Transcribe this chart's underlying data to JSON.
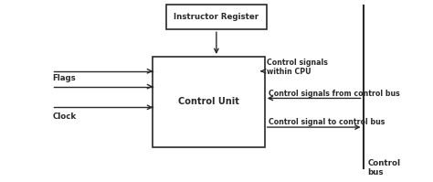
{
  "bg_color": "#ffffff",
  "box_color": "#ffffff",
  "line_color": "#2a2a2a",
  "text_color": "#2a2a2a",
  "control_unit_label": "Control Unit",
  "instructor_register_label": "Instructor Register",
  "flags_label": "Flags",
  "clock_label": "Clock",
  "control_signals_within_cpu": "Control signals\nwithin CPU",
  "control_signals_from_control_bus": "Control signals from control bus",
  "control_signal_to_control_bus": "Control signal to control bus",
  "control_bus_label": "Control\nbus",
  "font_size_main": 7.0,
  "font_size_small": 6.2
}
